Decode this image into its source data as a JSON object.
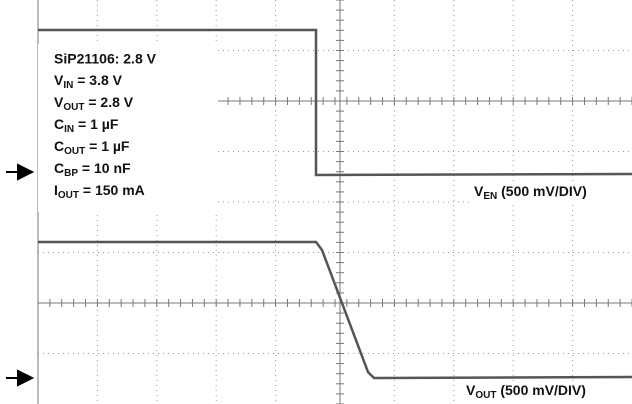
{
  "settings": {
    "title": "SiP21106: 2.8 V",
    "lines": [
      {
        "symbol": "V",
        "sub": "IN",
        "rest": " = 3.8 V"
      },
      {
        "symbol": "V",
        "sub": "OUT",
        "rest": " = 2.8 V"
      },
      {
        "symbol": "C",
        "sub": "IN",
        "rest": " = 1 µF"
      },
      {
        "symbol": "C",
        "sub": "OUT",
        "rest": " = 1 µF"
      },
      {
        "symbol": "C",
        "sub": "BP",
        "rest": " = 10 nF"
      },
      {
        "symbol": "I",
        "sub": "OUT",
        "rest": " = 150 mA"
      }
    ]
  },
  "channels": [
    {
      "symbol": "V",
      "sub": "EN",
      "rest": " (500 mV/DIV)"
    },
    {
      "symbol": "V",
      "sub": "OUT",
      "rest": " (500 mV/DIV)"
    }
  ]
}
